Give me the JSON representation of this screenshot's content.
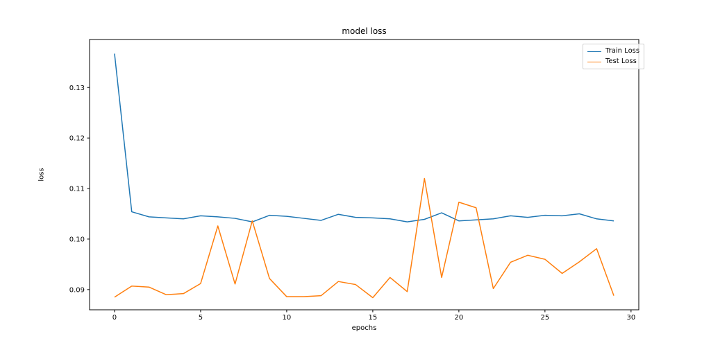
{
  "chart_data": {
    "type": "line",
    "title": "model loss",
    "xlabel": "epochs",
    "ylabel": "loss",
    "x": [
      0,
      1,
      2,
      3,
      4,
      5,
      6,
      7,
      8,
      9,
      10,
      11,
      12,
      13,
      14,
      15,
      16,
      17,
      18,
      19,
      20,
      21,
      22,
      23,
      24,
      25,
      26,
      27,
      28,
      29
    ],
    "series": [
      {
        "name": "Train Loss",
        "color": "#1f77b4",
        "values": [
          0.1367,
          0.1054,
          0.1044,
          0.1042,
          0.104,
          0.1046,
          0.1044,
          0.1041,
          0.1034,
          0.1047,
          0.1045,
          0.1041,
          0.1037,
          0.1049,
          0.1043,
          0.1042,
          0.104,
          0.1034,
          0.1039,
          0.1052,
          0.1036,
          0.1038,
          0.104,
          0.1046,
          0.1043,
          0.1047,
          0.1046,
          0.105,
          0.104,
          0.1036
        ]
      },
      {
        "name": "Test Loss",
        "color": "#ff7f0e",
        "values": [
          0.0885,
          0.0907,
          0.0905,
          0.089,
          0.0892,
          0.0912,
          0.1026,
          0.0911,
          0.1036,
          0.0922,
          0.0886,
          0.0886,
          0.0888,
          0.0916,
          0.091,
          0.0884,
          0.0924,
          0.0896,
          0.112,
          0.0924,
          0.1073,
          0.1062,
          0.0902,
          0.0954,
          0.0968,
          0.096,
          0.0932,
          0.0955,
          0.0981,
          0.0888
        ]
      }
    ],
    "xlim": [
      -1.45,
      30.45
    ],
    "ylim": [
      0.086,
      0.1395
    ],
    "xticks": [
      0,
      5,
      10,
      15,
      20,
      25,
      30
    ],
    "xtick_labels": [
      "0",
      "5",
      "10",
      "15",
      "20",
      "25",
      "30"
    ],
    "yticks": [
      0.09,
      0.1,
      0.11,
      0.12,
      0.13
    ],
    "ytick_labels": [
      "0.09",
      "0.10",
      "0.11",
      "0.12",
      "0.13"
    ],
    "legend": {
      "position": "upper right",
      "entries": [
        "Train Loss",
        "Test Loss"
      ]
    },
    "grid": false,
    "line_width": 1.5,
    "axis_color": "#000000",
    "tick_label_color": "#000000",
    "background": "#ffffff"
  }
}
